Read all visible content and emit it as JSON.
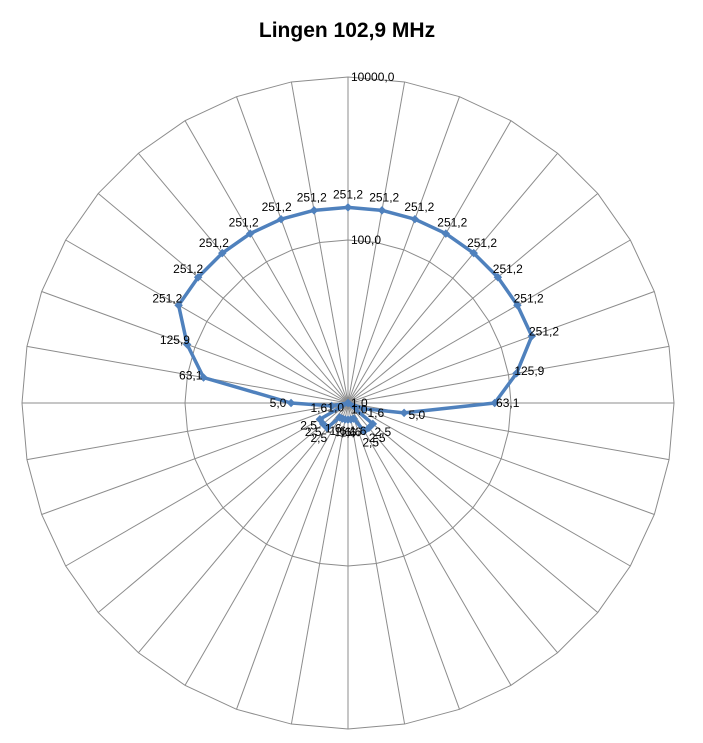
{
  "chart_data": {
    "type": "radar",
    "title": "Lingen 102,9 MHz",
    "scale": "log",
    "rlim": [
      1,
      10000
    ],
    "radial_ticks": [
      "1,0",
      "100,0",
      "10000,0"
    ],
    "radial_tick_values": [
      1,
      100,
      10000
    ],
    "categories_count": 36,
    "angle_step_deg": 10,
    "series": [
      {
        "values": [
          251.2,
          251.2,
          251.2,
          251.2,
          251.2,
          251.2,
          251.2,
          251.2,
          125.9,
          63.1,
          5.0,
          1.6,
          1.0,
          2.5,
          2.5,
          2.5,
          1.6,
          1.6,
          1.6,
          1.6,
          1.6,
          1.6,
          2.5,
          2.5,
          2.5,
          1.0,
          1.6,
          5.0,
          63.1,
          125.9,
          251.2,
          251.2,
          251.2,
          251.2,
          251.2,
          251.2
        ],
        "labels": [
          "251,2",
          "251,2",
          "251,2",
          "251,2",
          "251,2",
          "251,2",
          "251,2",
          "251,2",
          "125,9",
          "63,1",
          "5,0",
          "1,6",
          "1,0",
          "2,5",
          "2,5",
          "2,5",
          "1,6",
          "1,6",
          "1,6",
          "1,6",
          "1,6",
          "1,6",
          "2,5",
          "2,5",
          "2,5",
          "1,0",
          "1,6",
          "5,0",
          "63,1",
          "125,9",
          "251,2",
          "251,2",
          "251,2",
          "251,2",
          "251,2",
          "251,2"
        ],
        "color": "#4f81bd"
      }
    ],
    "grid": true,
    "legend": "none"
  }
}
